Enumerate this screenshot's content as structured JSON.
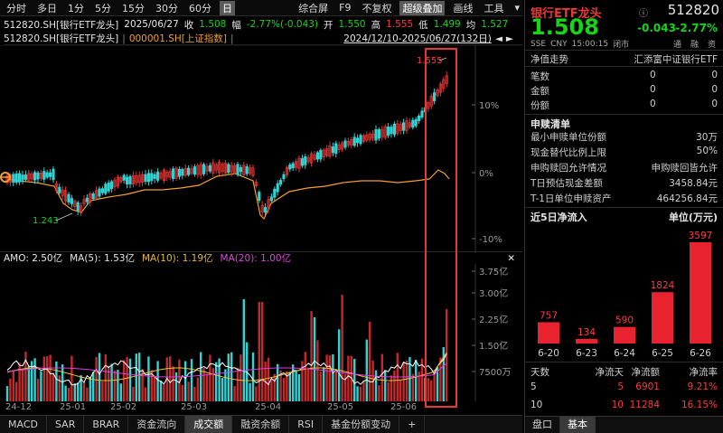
{
  "toolbar": {
    "periods": [
      "分时",
      "多日",
      "1分",
      "5分",
      "15分",
      "30分",
      "60分",
      "日"
    ],
    "active_period": "日",
    "right_items": [
      "综合屏",
      "F9",
      "不复权",
      "超级叠加",
      "画线",
      "工具"
    ],
    "right_active": "超级叠加"
  },
  "quote": {
    "code_name": "512820.SH[银行ETF龙头]",
    "date": "2025/06/27",
    "close_label": "收",
    "close": "1.508",
    "change_label": "幅",
    "change": "-2.77%(-0.043)",
    "open_label": "开",
    "open": "1.550",
    "high_label": "高",
    "high": "1.555",
    "low_label": "低",
    "low": "1.499",
    "avg_label": "均",
    "avg": "1.527"
  },
  "subline": {
    "main": "512820.SH[银行ETF龙头]",
    "overlay": "000001.SH[上证指数]",
    "range": "2024/12/10-2025/06/27(132日)"
  },
  "main_chart": {
    "pct_labels": [
      "10%",
      "0%",
      "-10%"
    ],
    "high_marker": "1.555",
    "low_marker": "1.243"
  },
  "volume": {
    "header": {
      "amo": "AMO: 2.50亿",
      "ma5": "MA(5): 1.53亿",
      "ma10": "MA(10): 1.19亿",
      "ma20": "MA(20): 1.00亿"
    },
    "axis_labels": [
      "3.75亿",
      "3.00亿",
      "2.25亿",
      "1.50亿",
      "7500万"
    ]
  },
  "date_axis": [
    "24-12",
    "25-01",
    "25-02",
    "25-03",
    "25-04",
    "25-05",
    "25-06"
  ],
  "tabs": [
    "MACD",
    "SAR",
    "BRAR",
    "资金流向",
    "成交额",
    "融资余额",
    "RSI",
    "基金份额变动",
    "+"
  ],
  "active_tab": "成交额",
  "right_panel": {
    "title": "银行ETF龙头",
    "code": "512820",
    "price": "1.508",
    "change": "-0.043",
    "change_pct": "-2.77%",
    "meta": [
      "SSE",
      "CNY",
      "15:00:15",
      "闭市"
    ],
    "tags": [
      "通",
      "融",
      "资"
    ],
    "net_value_label": "净值走势",
    "net_value_name": "汇添富中证银行ETF",
    "nv_rows": [
      {
        "label": "笔数",
        "a": "0",
        "b": "0"
      },
      {
        "label": "金额",
        "a": "0",
        "b": "0"
      },
      {
        "label": "份额",
        "a": "0",
        "b": "0"
      }
    ],
    "subscription_title": "申赎清单",
    "sub_rows": [
      {
        "label": "最小申赎单位份额",
        "value": "30万"
      },
      {
        "label": "现金替代比例上限",
        "value": "50%"
      },
      {
        "label": "申购赎回允许情况",
        "value": "申购赎回皆允许"
      },
      {
        "label": "T日预估现金差额",
        "value": "3458.84元"
      },
      {
        "label": "T-1日单位申赎资产",
        "value": "464256.84元"
      }
    ],
    "flow_title": "近5日净流入",
    "flow_unit": "单位(万元)",
    "flow_chart": {
      "type": "bar",
      "categories": [
        "6-20",
        "6-23",
        "6-24",
        "6-25",
        "6-26"
      ],
      "values": [
        757,
        134,
        590,
        1824,
        3597
      ]
    },
    "summary_headers": [
      "天数",
      "净流天",
      "净流额",
      "净流率"
    ],
    "summary_rows": [
      [
        "5",
        "5",
        "6901",
        "9.21%"
      ],
      [
        "10",
        "10",
        "11284",
        "16.15%"
      ]
    ],
    "bottom_tabs": [
      "盘口",
      "基本"
    ],
    "bottom_active": "基本"
  },
  "chart_data": {
    "type": "candlestick+bar",
    "title": "512820.SH[银行ETF龙头]",
    "overlay_series": "000001.SH[上证指数]",
    "date_range": "2024/12/10-2025/06/27",
    "x_ticks": [
      "24-12",
      "25-01",
      "25-02",
      "25-03",
      "25-04",
      "25-05",
      "25-06"
    ],
    "price_range": [
      1.243,
      1.555
    ],
    "pct_ticks": [
      "10%",
      "0%",
      "-10%"
    ],
    "volume_axis": [
      "3.75亿",
      "3.00亿",
      "2.25亿",
      "1.50亿",
      "7500万"
    ],
    "volume_indicators": {
      "AMO": "2.50亿",
      "MA5": "1.53亿",
      "MA10": "1.19亿",
      "MA20": "1.00亿"
    },
    "colors": {
      "up": "#e23232",
      "down": "#2fd3d3",
      "overlay": "#f0a030",
      "ma5": "#ffffff",
      "ma10": "#f0c040",
      "ma20": "#e040e0"
    }
  }
}
